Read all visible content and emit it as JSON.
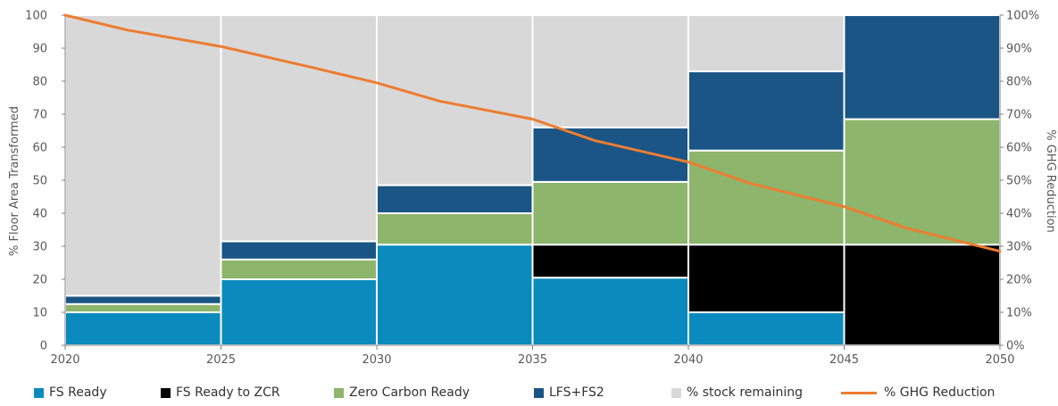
{
  "chart_data": {
    "type": "bar",
    "subtype": "stacked-step-area with line",
    "x_ticks": [
      "2020",
      "2025",
      "2030",
      "2035",
      "2040",
      "2045",
      "2050"
    ],
    "periods": [
      {
        "start": 2020,
        "end": 2025
      },
      {
        "start": 2025,
        "end": 2030
      },
      {
        "start": 2030,
        "end": 2035
      },
      {
        "start": 2035,
        "end": 2040
      },
      {
        "start": 2040,
        "end": 2045
      },
      {
        "start": 2045,
        "end": 2050
      }
    ],
    "series": [
      {
        "name": "FS Ready",
        "color": "#0b8bbd",
        "values": [
          10,
          20,
          30.5,
          20.5,
          10,
          0
        ]
      },
      {
        "name": "FS Ready to ZCR",
        "color": "#000000",
        "values": [
          0,
          0,
          0,
          10,
          20.5,
          30.5
        ]
      },
      {
        "name": "Zero Carbon Ready",
        "color": "#8db56b",
        "values": [
          2.5,
          6,
          9.5,
          19,
          28.5,
          38
        ]
      },
      {
        "name": "LFS+FS2",
        "color": "#1a5585",
        "values": [
          2.5,
          5.5,
          8.5,
          16.5,
          24,
          31.5
        ]
      },
      {
        "name": "% stock remaining",
        "color": "#d8d8d8",
        "values": [
          85,
          68.5,
          51.5,
          34,
          17,
          0
        ]
      }
    ],
    "line": {
      "name": "% GHG Reduction",
      "color": "#ed7d31",
      "axis": "right",
      "x": [
        2020,
        2022,
        2025,
        2028,
        2030,
        2032,
        2035,
        2037,
        2040,
        2042,
        2045,
        2047,
        2050
      ],
      "y": [
        100,
        95.5,
        90.5,
        84,
        79.5,
        74,
        68.5,
        62,
        55.5,
        49,
        42,
        35.5,
        28.5
      ]
    },
    "y_left": {
      "label": "% Floor Area Transformed",
      "lim": [
        0,
        100
      ],
      "ticks": [
        "0",
        "10",
        "20",
        "30",
        "40",
        "50",
        "60",
        "70",
        "80",
        "90",
        "100"
      ]
    },
    "y_right": {
      "label": "% GHG Reduction",
      "lim": [
        0,
        100
      ],
      "ticks": [
        "0%",
        "10%",
        "20%",
        "30%",
        "40%",
        "50%",
        "60%",
        "70%",
        "80%",
        "90%",
        "100%"
      ]
    },
    "xlim": [
      2020,
      2050
    ],
    "legend_position": "bottom",
    "grid": false
  }
}
